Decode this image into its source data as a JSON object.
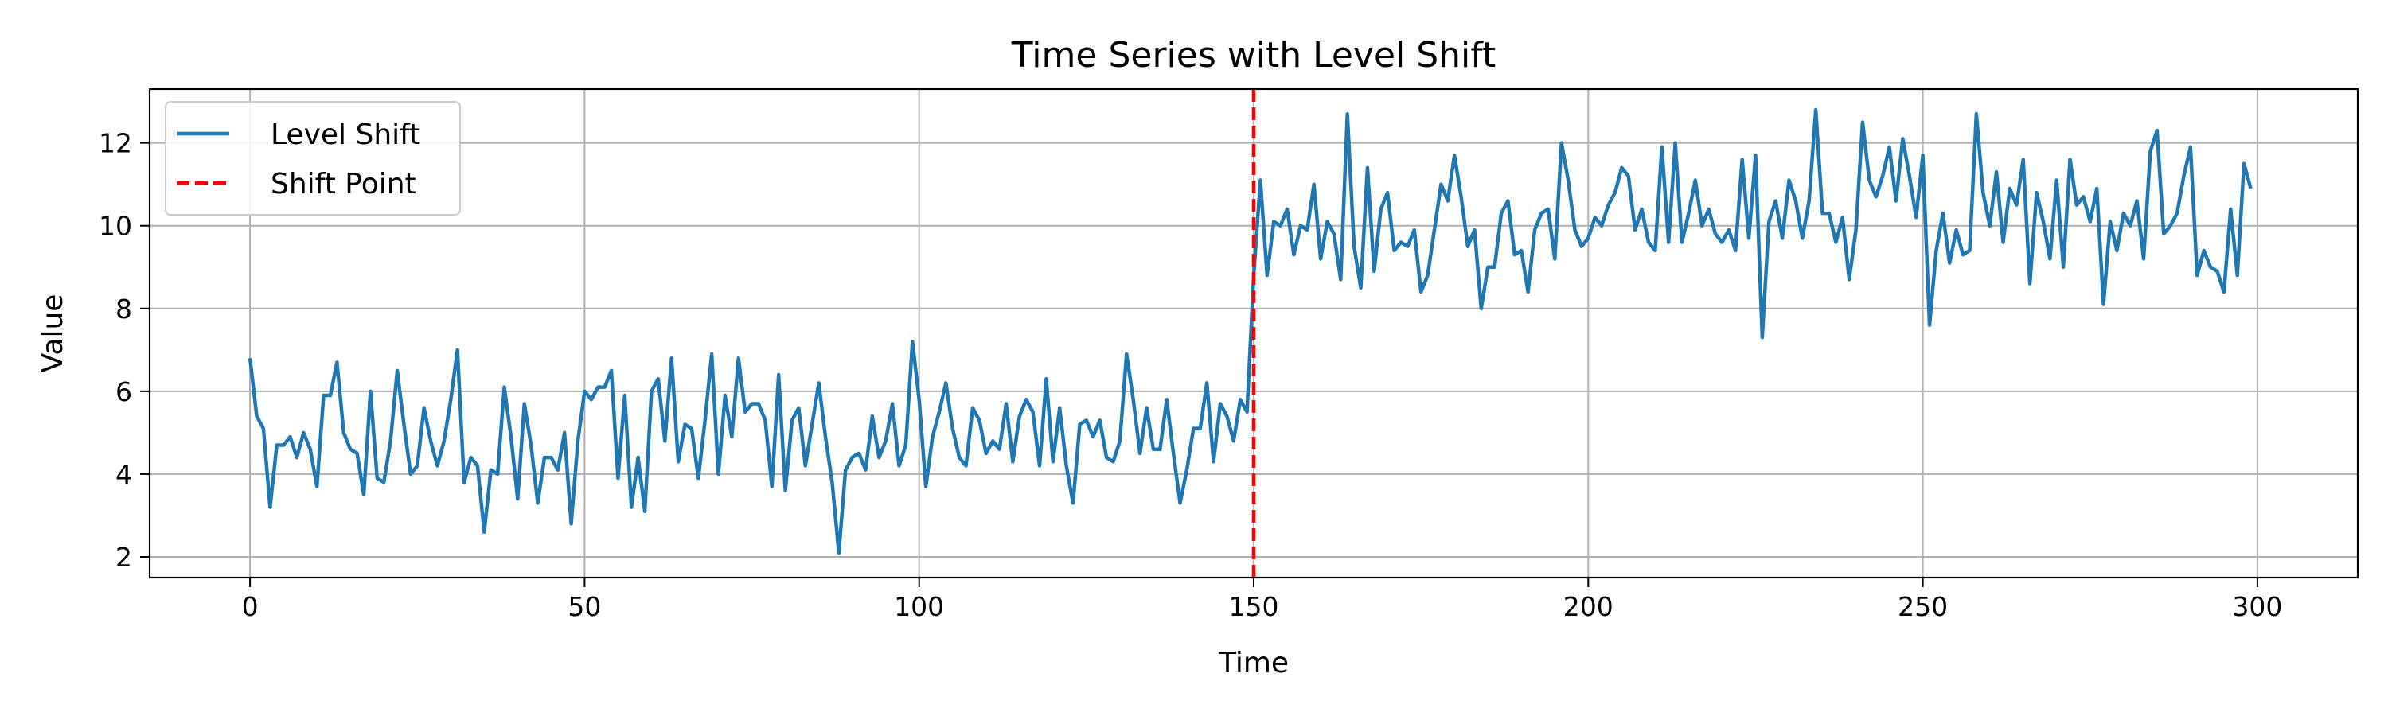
{
  "chart_data": {
    "type": "line",
    "title": "Time Series with Level Shift",
    "xlabel": "Time",
    "ylabel": "Value",
    "xlim": [
      -15,
      315
    ],
    "ylim": [
      1.5,
      13.3
    ],
    "xticks": [
      0,
      50,
      100,
      150,
      200,
      250,
      300
    ],
    "yticks": [
      2,
      4,
      6,
      8,
      10,
      12
    ],
    "grid": true,
    "legend_position": "top-left",
    "series": [
      {
        "name": "Level Shift",
        "color": "#1f77b4",
        "style": "solid",
        "x_start": 0,
        "x_step": 1,
        "values": [
          6.8,
          5.4,
          5.1,
          3.2,
          4.7,
          4.7,
          4.9,
          4.4,
          5.0,
          4.6,
          3.7,
          5.9,
          5.9,
          6.7,
          5.0,
          4.6,
          4.5,
          3.5,
          6.0,
          3.9,
          3.8,
          4.8,
          6.5,
          5.2,
          4.0,
          4.2,
          5.6,
          4.8,
          4.2,
          4.8,
          5.8,
          7.0,
          3.8,
          4.4,
          4.2,
          2.6,
          4.1,
          4.0,
          6.1,
          4.9,
          3.4,
          5.7,
          4.7,
          3.3,
          4.4,
          4.4,
          4.1,
          5.0,
          2.8,
          4.8,
          6.0,
          5.8,
          6.1,
          6.1,
          6.5,
          3.9,
          5.9,
          3.2,
          4.4,
          3.1,
          6.0,
          6.3,
          4.8,
          6.8,
          4.3,
          5.2,
          5.1,
          3.9,
          5.3,
          6.9,
          4.0,
          5.9,
          4.9,
          6.8,
          5.5,
          5.7,
          5.7,
          5.3,
          3.7,
          6.4,
          3.6,
          5.3,
          5.6,
          4.2,
          5.2,
          6.2,
          4.9,
          3.8,
          2.1,
          4.1,
          4.4,
          4.5,
          4.1,
          5.4,
          4.4,
          4.8,
          5.7,
          4.2,
          4.7,
          7.2,
          5.8,
          3.7,
          4.9,
          5.5,
          6.2,
          5.1,
          4.4,
          4.2,
          5.6,
          5.3,
          4.5,
          4.8,
          4.6,
          5.7,
          4.3,
          5.4,
          5.8,
          5.5,
          4.2,
          6.3,
          4.3,
          5.6,
          4.2,
          3.3,
          5.2,
          5.3,
          4.9,
          5.3,
          4.4,
          4.3,
          4.8,
          6.9,
          5.8,
          4.5,
          5.6,
          4.6,
          4.6,
          5.8,
          4.5,
          3.3,
          4.1,
          5.1,
          5.1,
          6.2,
          4.3,
          5.7,
          5.4,
          4.8,
          5.8,
          5.5,
          8.8,
          11.1,
          8.8,
          10.1,
          10.0,
          10.4,
          9.3,
          10.0,
          9.9,
          11.0,
          9.2,
          10.1,
          9.8,
          8.7,
          12.7,
          9.5,
          8.5,
          11.4,
          8.9,
          10.4,
          10.8,
          9.4,
          9.6,
          9.5,
          9.9,
          8.4,
          8.8,
          9.9,
          11.0,
          10.6,
          11.7,
          10.7,
          9.5,
          9.9,
          8.0,
          9.0,
          9.0,
          10.3,
          10.6,
          9.3,
          9.4,
          8.4,
          9.9,
          10.3,
          10.4,
          9.2,
          12.0,
          11.1,
          9.9,
          9.5,
          9.7,
          10.2,
          10.0,
          10.5,
          10.8,
          11.4,
          11.2,
          9.9,
          10.4,
          9.6,
          9.4,
          11.9,
          9.6,
          12.0,
          9.6,
          10.3,
          11.1,
          10.0,
          10.4,
          9.8,
          9.6,
          9.9,
          9.4,
          11.6,
          9.7,
          11.7,
          7.3,
          10.1,
          10.6,
          9.7,
          11.1,
          10.6,
          9.7,
          10.6,
          12.8,
          10.3,
          10.3,
          9.6,
          10.2,
          8.7,
          9.9,
          12.5,
          11.1,
          10.7,
          11.2,
          11.9,
          10.6,
          12.1,
          11.2,
          10.2,
          11.7,
          7.6,
          9.4,
          10.3,
          9.1,
          9.9,
          9.3,
          9.4,
          12.7,
          10.8,
          10.0,
          11.3,
          9.6,
          10.9,
          10.5,
          11.6,
          8.6,
          10.8,
          10.1,
          9.2,
          11.1,
          9.0,
          11.6,
          10.5,
          10.7,
          10.1,
          10.9,
          8.1,
          10.1,
          9.4,
          10.3,
          10.0,
          10.6,
          9.2,
          11.8,
          12.3,
          9.8,
          10.0,
          10.3,
          11.2,
          11.9,
          8.8,
          9.4,
          9.0,
          8.9,
          8.4,
          10.4,
          8.8,
          11.5,
          10.9
        ]
      },
      {
        "name": "Shift Point",
        "color": "#ff0000",
        "style": "dashed",
        "x_value": 150
      }
    ]
  }
}
